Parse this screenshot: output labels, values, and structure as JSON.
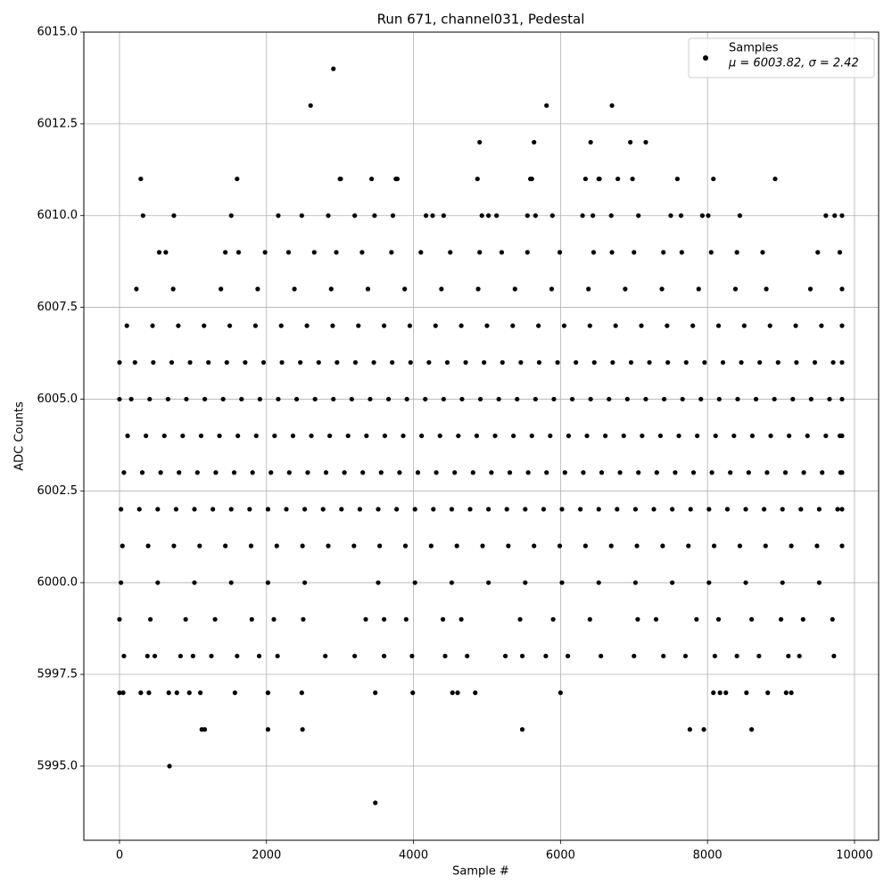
{
  "chart_data": {
    "type": "scatter",
    "title": "Run 671, channel031, Pedestal",
    "x_label": "Sample #",
    "y_label": "ADC Counts",
    "xlim": [
      -485,
      10328
    ],
    "ylim": [
      5992.98,
      6015
    ],
    "xticks": [
      0,
      2000,
      4000,
      6000,
      8000,
      10000
    ],
    "yticks": [
      {
        "value": 5995,
        "label": "5995.0"
      },
      5997.5,
      {
        "value": 6000,
        "label": "6000.0"
      },
      6002.5,
      {
        "value": 6005,
        "label": "6005.0"
      },
      6007.5,
      {
        "value": 6010,
        "label": "6010.0"
      },
      6012.5,
      {
        "value": 6015,
        "label": "6015.0"
      }
    ],
    "grid": true,
    "legend_position": "upper right",
    "legend_note": "μ = 6003.82, σ = 2.42",
    "series": [
      {
        "name": "Samples",
        "color": "#000000",
        "x": [
          20,
          270,
          520,
          770,
          1020,
          1270,
          1520,
          1770,
          2020,
          2270,
          2520,
          2770,
          3020,
          3270,
          3520,
          3770,
          4020,
          4270,
          4520,
          4770,
          5020,
          5270,
          5520,
          5770,
          6020,
          6270,
          6520,
          6770,
          7020,
          7270,
          7520,
          7770,
          8020,
          8270,
          8520,
          8770,
          9020,
          9270,
          9520,
          9770,
          9830,
          60,
          310,
          560,
          810,
          1060,
          1310,
          1560,
          1810,
          2060,
          2310,
          2560,
          2810,
          3060,
          3310,
          3560,
          3810,
          4060,
          4310,
          4560,
          4810,
          5060,
          5310,
          5560,
          5810,
          6060,
          6310,
          6560,
          6810,
          7060,
          7310,
          7560,
          7810,
          8060,
          8310,
          8560,
          8810,
          9060,
          9310,
          9560,
          9810,
          9830,
          110,
          360,
          610,
          860,
          1110,
          1360,
          1610,
          1860,
          2110,
          2360,
          2610,
          2860,
          3110,
          3360,
          3610,
          3860,
          4110,
          4360,
          4610,
          4860,
          5110,
          5360,
          5610,
          5860,
          6110,
          6360,
          6610,
          6860,
          7110,
          7360,
          7610,
          7860,
          8110,
          8360,
          8610,
          8860,
          9110,
          9360,
          9610,
          9800,
          9830,
          0,
          160,
          410,
          660,
          910,
          1160,
          1410,
          1660,
          1910,
          2160,
          2410,
          2660,
          2910,
          3160,
          3410,
          3660,
          3910,
          4160,
          4410,
          4660,
          4910,
          5160,
          5410,
          5660,
          5910,
          6160,
          6410,
          6660,
          6910,
          7160,
          7410,
          7660,
          7910,
          8160,
          8410,
          8660,
          8910,
          9160,
          9410,
          9660,
          9830,
          0,
          210,
          460,
          710,
          960,
          1210,
          1460,
          1710,
          1960,
          2210,
          2460,
          2710,
          2960,
          3210,
          3460,
          3710,
          3960,
          4210,
          4460,
          4710,
          4960,
          5210,
          5460,
          5710,
          5960,
          6210,
          6460,
          6710,
          6960,
          7210,
          7460,
          7710,
          7960,
          8210,
          8460,
          8710,
          8960,
          9210,
          9460,
          9710,
          9830,
          40,
          390,
          740,
          1090,
          1440,
          1790,
          2140,
          2490,
          2840,
          3190,
          3540,
          3890,
          4240,
          4590,
          4940,
          5290,
          5640,
          5990,
          6340,
          6690,
          7040,
          7390,
          7740,
          8090,
          8440,
          8790,
          9140,
          9490,
          9830,
          100,
          450,
          800,
          1150,
          1500,
          1850,
          2200,
          2550,
          2900,
          3250,
          3600,
          3950,
          4300,
          4650,
          5000,
          5350,
          5700,
          6050,
          6400,
          6750,
          7100,
          7450,
          7800,
          8150,
          8500,
          8850,
          9200,
          9550,
          9830,
          20,
          520,
          1020,
          1520,
          2020,
          2520,
          3520,
          4020,
          4520,
          5020,
          5520,
          6020,
          6520,
          7020,
          7520,
          8020,
          8520,
          9020,
          9520,
          230,
          730,
          1380,
          1880,
          2380,
          2880,
          3380,
          3880,
          4380,
          4880,
          5380,
          5880,
          6380,
          6880,
          7380,
          7880,
          8380,
          8800,
          9400,
          9830,
          0,
          420,
          900,
          1300,
          1800,
          2100,
          2500,
          3350,
          3600,
          3900,
          4400,
          4650,
          5450,
          5900,
          6400,
          7050,
          7300,
          7850,
          8150,
          8600,
          9000,
          9300,
          9700,
          540,
          630,
          1440,
          1620,
          1980,
          2300,
          2650,
          2950,
          3300,
          3700,
          4100,
          4500,
          4900,
          5200,
          5550,
          5990,
          6450,
          6700,
          7000,
          7400,
          7650,
          8050,
          8400,
          8750,
          9500,
          9800,
          60,
          380,
          480,
          830,
          1000,
          1250,
          1600,
          1900,
          2150,
          2800,
          3200,
          3600,
          3980,
          4430,
          4730,
          5250,
          5480,
          5800,
          6100,
          6550,
          7000,
          7400,
          7700,
          8100,
          8400,
          8700,
          9100,
          9250,
          9720,
          320,
          740,
          1520,
          2160,
          2480,
          2840,
          3200,
          3470,
          3720,
          4170,
          4260,
          4410,
          4930,
          5020,
          5130,
          5550,
          5660,
          5890,
          6300,
          6440,
          6690,
          7060,
          7500,
          7640,
          7930,
          8010,
          8440,
          9610,
          9730,
          9830,
          0,
          50,
          290,
          400,
          670,
          780,
          950,
          1100,
          1570,
          2020,
          2480,
          3480,
          3990,
          4530,
          4600,
          4840,
          6000,
          8080,
          8170,
          8250,
          8530,
          8820,
          9070,
          9140,
          1120,
          1160,
          2020,
          2490,
          5480,
          7760,
          7950,
          8600,
          290,
          1600,
          3000,
          3010,
          3430,
          3760,
          3780,
          4870,
          5590,
          5610,
          6340,
          6520,
          6530,
          6780,
          6980,
          7590,
          8080,
          8920,
          4900,
          5640,
          6410,
          6950,
          7160,
          2600,
          5810,
          6700,
          2910,
          680,
          3480
        ],
        "values": [
          6002,
          6002,
          6002,
          6002,
          6002,
          6002,
          6002,
          6002,
          6002,
          6002,
          6002,
          6002,
          6002,
          6002,
          6002,
          6002,
          6002,
          6002,
          6002,
          6002,
          6002,
          6002,
          6002,
          6002,
          6002,
          6002,
          6002,
          6002,
          6002,
          6002,
          6002,
          6002,
          6002,
          6002,
          6002,
          6002,
          6002,
          6002,
          6002,
          6002,
          6002,
          6003,
          6003,
          6003,
          6003,
          6003,
          6003,
          6003,
          6003,
          6003,
          6003,
          6003,
          6003,
          6003,
          6003,
          6003,
          6003,
          6003,
          6003,
          6003,
          6003,
          6003,
          6003,
          6003,
          6003,
          6003,
          6003,
          6003,
          6003,
          6003,
          6003,
          6003,
          6003,
          6003,
          6003,
          6003,
          6003,
          6003,
          6003,
          6003,
          6003,
          6003,
          6004,
          6004,
          6004,
          6004,
          6004,
          6004,
          6004,
          6004,
          6004,
          6004,
          6004,
          6004,
          6004,
          6004,
          6004,
          6004,
          6004,
          6004,
          6004,
          6004,
          6004,
          6004,
          6004,
          6004,
          6004,
          6004,
          6004,
          6004,
          6004,
          6004,
          6004,
          6004,
          6004,
          6004,
          6004,
          6004,
          6004,
          6004,
          6004,
          6004,
          6004,
          6005,
          6005,
          6005,
          6005,
          6005,
          6005,
          6005,
          6005,
          6005,
          6005,
          6005,
          6005,
          6005,
          6005,
          6005,
          6005,
          6005,
          6005,
          6005,
          6005,
          6005,
          6005,
          6005,
          6005,
          6005,
          6005,
          6005,
          6005,
          6005,
          6005,
          6005,
          6005,
          6005,
          6005,
          6005,
          6005,
          6005,
          6005,
          6005,
          6005,
          6005,
          6006,
          6006,
          6006,
          6006,
          6006,
          6006,
          6006,
          6006,
          6006,
          6006,
          6006,
          6006,
          6006,
          6006,
          6006,
          6006,
          6006,
          6006,
          6006,
          6006,
          6006,
          6006,
          6006,
          6006,
          6006,
          6006,
          6006,
          6006,
          6006,
          6006,
          6006,
          6006,
          6006,
          6006,
          6006,
          6006,
          6006,
          6006,
          6006,
          6006,
          6006,
          6001,
          6001,
          6001,
          6001,
          6001,
          6001,
          6001,
          6001,
          6001,
          6001,
          6001,
          6001,
          6001,
          6001,
          6001,
          6001,
          6001,
          6001,
          6001,
          6001,
          6001,
          6001,
          6001,
          6001,
          6001,
          6001,
          6001,
          6001,
          6001,
          6007,
          6007,
          6007,
          6007,
          6007,
          6007,
          6007,
          6007,
          6007,
          6007,
          6007,
          6007,
          6007,
          6007,
          6007,
          6007,
          6007,
          6007,
          6007,
          6007,
          6007,
          6007,
          6007,
          6007,
          6007,
          6007,
          6007,
          6007,
          6007,
          6000,
          6000,
          6000,
          6000,
          6000,
          6000,
          6000,
          6000,
          6000,
          6000,
          6000,
          6000,
          6000,
          6000,
          6000,
          6000,
          6000,
          6000,
          6000,
          6008,
          6008,
          6008,
          6008,
          6008,
          6008,
          6008,
          6008,
          6008,
          6008,
          6008,
          6008,
          6008,
          6008,
          6008,
          6008,
          6008,
          6008,
          6008,
          6008,
          5999,
          5999,
          5999,
          5999,
          5999,
          5999,
          5999,
          5999,
          5999,
          5999,
          5999,
          5999,
          5999,
          5999,
          5999,
          5999,
          5999,
          5999,
          5999,
          5999,
          5999,
          5999,
          5999,
          6009,
          6009,
          6009,
          6009,
          6009,
          6009,
          6009,
          6009,
          6009,
          6009,
          6009,
          6009,
          6009,
          6009,
          6009,
          6009,
          6009,
          6009,
          6009,
          6009,
          6009,
          6009,
          6009,
          6009,
          6009,
          6009,
          5998,
          5998,
          5998,
          5998,
          5998,
          5998,
          5998,
          5998,
          5998,
          5998,
          5998,
          5998,
          5998,
          5998,
          5998,
          5998,
          5998,
          5998,
          5998,
          5998,
          5998,
          5998,
          5998,
          5998,
          5998,
          5998,
          5998,
          5998,
          5998,
          6010,
          6010,
          6010,
          6010,
          6010,
          6010,
          6010,
          6010,
          6010,
          6010,
          6010,
          6010,
          6010,
          6010,
          6010,
          6010,
          6010,
          6010,
          6010,
          6010,
          6010,
          6010,
          6010,
          6010,
          6010,
          6010,
          6010,
          6010,
          6010,
          6010,
          5997,
          5997,
          5997,
          5997,
          5997,
          5997,
          5997,
          5997,
          5997,
          5997,
          5997,
          5997,
          5997,
          5997,
          5997,
          5997,
          5997,
          5997,
          5997,
          5997,
          5997,
          5997,
          5997,
          5997,
          5996,
          5996,
          5996,
          5996,
          5996,
          5996,
          5996,
          5996,
          6011,
          6011,
          6011,
          6011,
          6011,
          6011,
          6011,
          6011,
          6011,
          6011,
          6011,
          6011,
          6011,
          6011,
          6011,
          6011,
          6011,
          6011,
          6012,
          6012,
          6012,
          6012,
          6012,
          6013,
          6013,
          6013,
          6014,
          5995,
          5994
        ]
      }
    ]
  }
}
